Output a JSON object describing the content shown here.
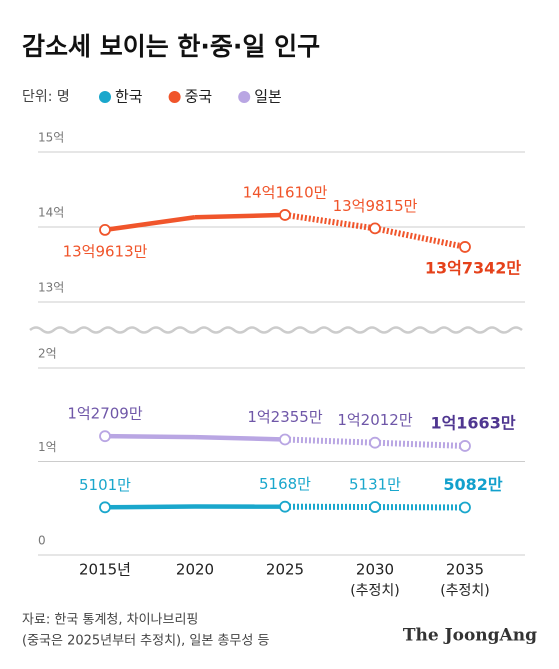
{
  "title": "감소세 보이는 한·중·일 인구",
  "unit_label": "단위: 명",
  "source": [
    "자료: 한국 통계청, 차이나브리핑",
    "(중국은 2025년부터 추정치), 일본 총무성 등"
  ],
  "brand": "The JoongAng",
  "chart_data": [
    {
      "type": "line",
      "ylim": [
        13,
        15
      ],
      "yticks": [
        {
          "value": 13,
          "label": "13억"
        },
        {
          "value": 14,
          "label": "14억"
        },
        {
          "value": 15,
          "label": "15억"
        }
      ],
      "grid": true,
      "series": [
        {
          "name": "중국",
          "color": "#f0552b",
          "values": [
            13.9613,
            14.13,
            14.161,
            13.9815,
            13.7342
          ],
          "value_labels": [
            "13억9613만",
            null,
            "14억1610만",
            "13억9815만",
            "13억7342만"
          ]
        }
      ]
    },
    {
      "type": "line",
      "ylim": [
        0,
        2
      ],
      "yticks": [
        {
          "value": 0,
          "label": "0"
        },
        {
          "value": 1,
          "label": "1억"
        },
        {
          "value": 2,
          "label": "2억"
        }
      ],
      "grid": true,
      "categories": [
        "2015년",
        "2020",
        "2025",
        "2030",
        "2035"
      ],
      "x_notes": [
        null,
        null,
        null,
        "(추정치)",
        "(추정치)"
      ],
      "series": [
        {
          "name": "한국",
          "color": "#1aa7cc",
          "values": [
            0.5101,
            0.5184,
            0.5168,
            0.5131,
            0.5082
          ],
          "value_labels": [
            "5101만",
            null,
            "5168만",
            "5131만",
            "5082만"
          ]
        },
        {
          "name": "일본",
          "color": "#b9a6e3",
          "label_color": "#6f57a8",
          "values": [
            1.2709,
            1.261,
            1.2355,
            1.2012,
            1.1663
          ],
          "value_labels": [
            "1억2709만",
            null,
            "1억2355만",
            "1억2012만",
            "1억1663만"
          ]
        }
      ]
    }
  ]
}
